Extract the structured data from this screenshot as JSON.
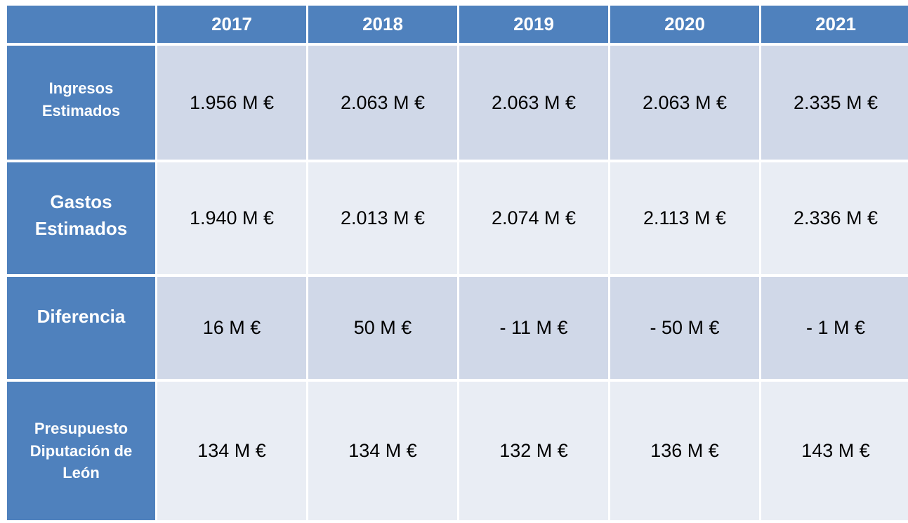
{
  "columns": [
    "",
    "2017",
    "2018",
    "2019",
    "2020",
    "2021"
  ],
  "rows": [
    {
      "label_lines": [
        "Ingresos",
        "Estimados"
      ],
      "values": [
        "1.956 M €",
        "2.063 M €",
        "2.063 M €",
        "2.063 M €",
        "2.335 M €"
      ]
    },
    {
      "label_lines": [
        "Gastos",
        "Estimados"
      ],
      "values": [
        "1.940 M €",
        "2.013 M €",
        "2.074 M €",
        "2.113 M €",
        "2.336 M €"
      ]
    },
    {
      "label_lines": [
        "Diferencia"
      ],
      "values": [
        "16 M €",
        "50 M €",
        "- 11 M €",
        "- 50 M €",
        "- 1 M €"
      ]
    },
    {
      "label_lines": [
        "Presupuesto",
        "Diputación de",
        "León"
      ],
      "values": [
        "134 M €",
        "134 M €",
        "132 M €",
        "136 M €",
        "143 M €"
      ]
    }
  ],
  "colors": {
    "header_bg": "#4f81bd",
    "header_text": "#ffffff",
    "band_dark": "#d0d8e8",
    "band_light": "#e9edf4"
  }
}
